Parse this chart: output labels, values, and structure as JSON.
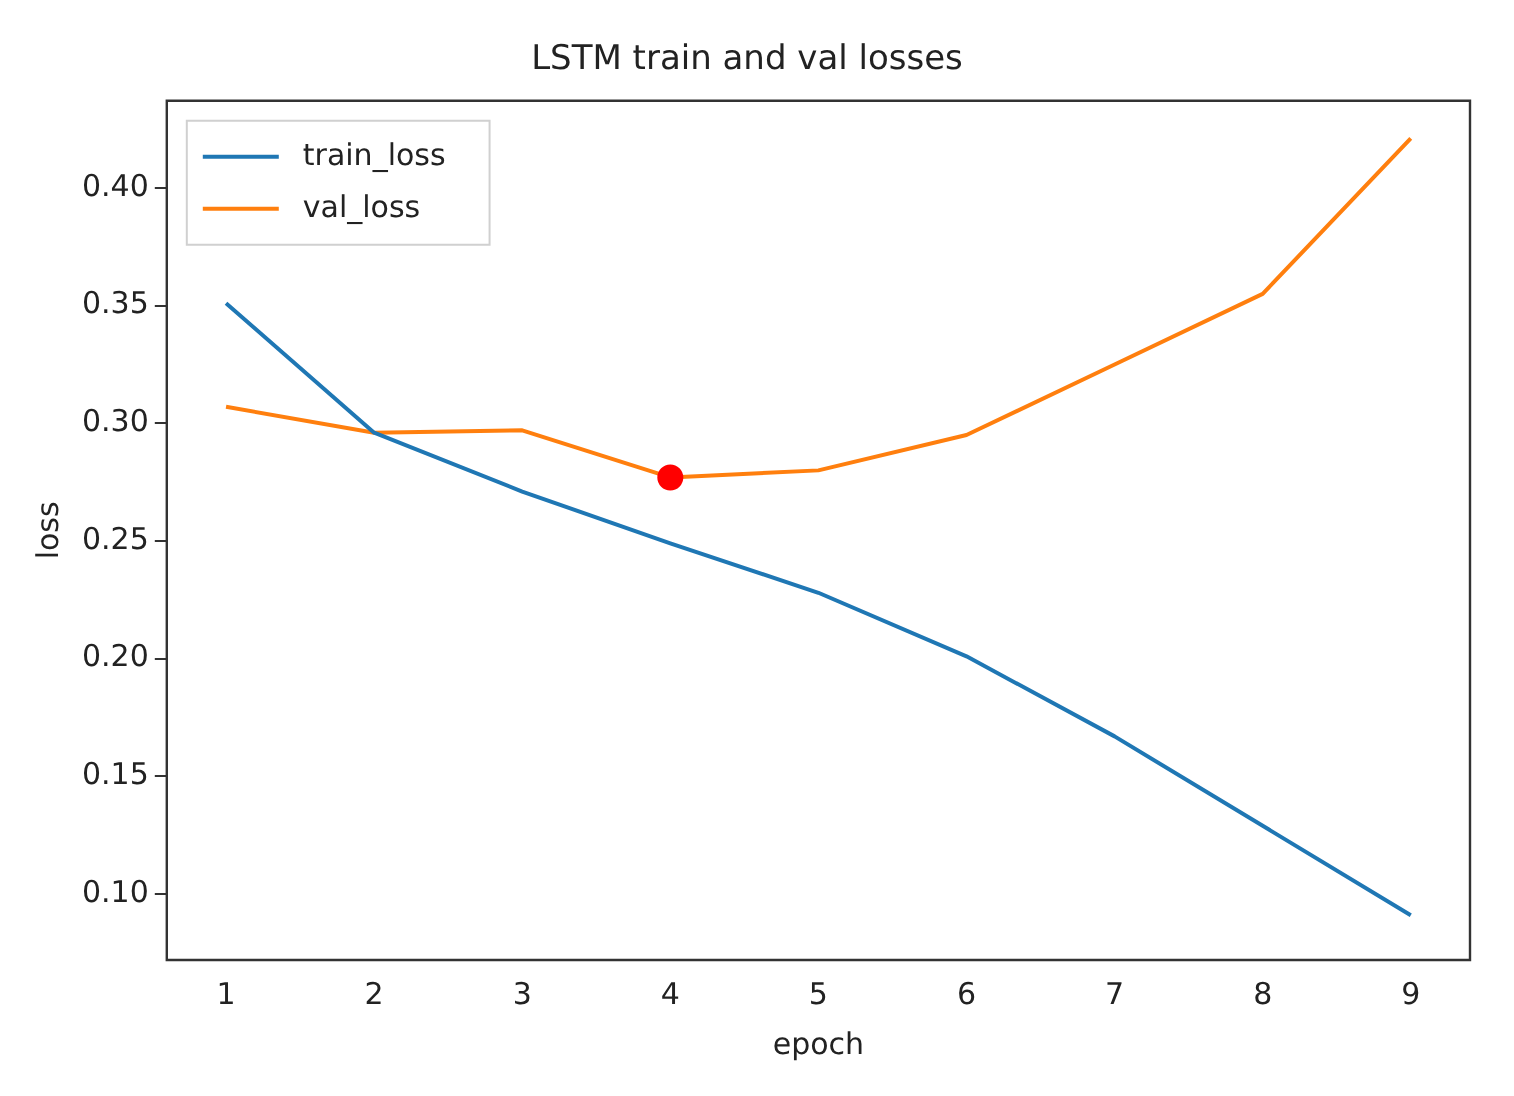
{
  "chart_data": {
    "type": "line",
    "title": "LSTM train and val losses",
    "xlabel": "epoch",
    "ylabel": "loss",
    "x": [
      1,
      2,
      3,
      4,
      5,
      6,
      7,
      8,
      9
    ],
    "series": [
      {
        "name": "train_loss",
        "color": "#1f77b4",
        "values": [
          0.351,
          0.296,
          0.271,
          0.249,
          0.228,
          0.201,
          0.167,
          0.129,
          0.091
        ]
      },
      {
        "name": "val_loss",
        "color": "#ff7f0e",
        "values": [
          0.307,
          0.296,
          0.297,
          0.277,
          0.28,
          0.295,
          0.325,
          0.355,
          0.421
        ]
      },
      {
        "type": "scatter",
        "color": "#ff0000",
        "x": [
          4
        ],
        "values": [
          0.277
        ],
        "marker": "circle"
      }
    ],
    "xlim": [
      0.6,
      9.4
    ],
    "xticks": [
      1,
      2,
      3,
      4,
      5,
      6,
      7,
      8,
      9
    ],
    "ylim": [
      0.072,
      0.437
    ],
    "yticks": [
      {
        "value": 0.1,
        "label": "0.10"
      },
      {
        "value": 0.15,
        "label": "0.15"
      },
      {
        "value": 0.2,
        "label": "0.20"
      },
      {
        "value": 0.25,
        "label": "0.25"
      },
      {
        "value": 0.3,
        "label": "0.30"
      },
      {
        "value": 0.35,
        "label": "0.35"
      },
      {
        "value": 0.4,
        "label": "0.40"
      }
    ],
    "grid": false,
    "legend": "top left",
    "marker": "none",
    "line_style": "solid"
  }
}
